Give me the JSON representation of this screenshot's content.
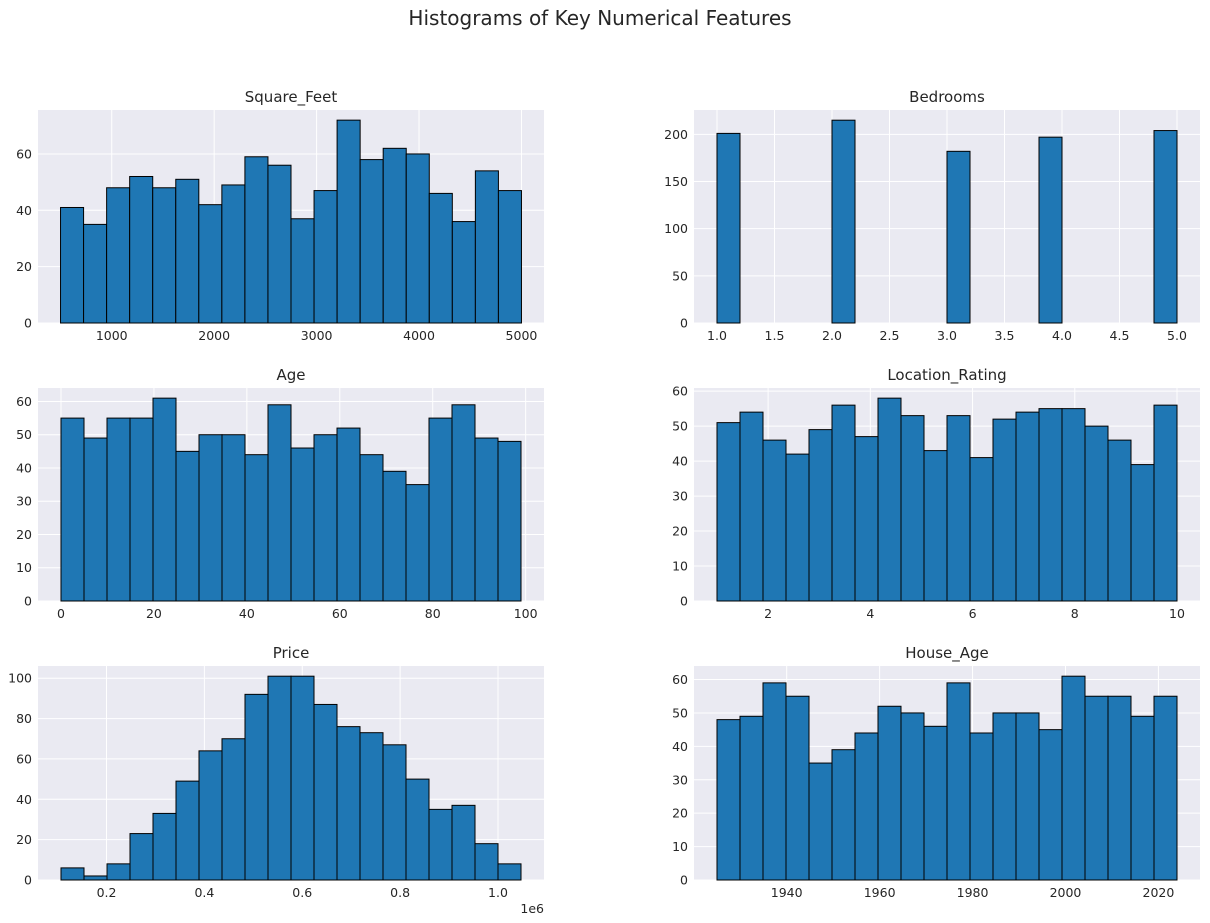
{
  "figure": {
    "title": "Histograms of Key Numerical Features",
    "background": "#ffffff",
    "axes_background": "#eaeaf2",
    "bar_color": "#1f77b4",
    "edge_color": "#000000",
    "grid_color": "#ffffff"
  },
  "chart_data": [
    {
      "type": "bar",
      "title": "Square_Feet",
      "xlabel": "",
      "ylabel": "",
      "bin_range": [
        500,
        5000
      ],
      "bin_count": 20,
      "values": [
        41,
        35,
        48,
        52,
        48,
        51,
        42,
        49,
        59,
        56,
        37,
        47,
        72,
        58,
        62,
        60,
        46,
        36,
        54,
        47
      ],
      "xlim": [
        280,
        5220
      ],
      "ylim": [
        0,
        75.6
      ],
      "xticks": [
        1000,
        2000,
        3000,
        4000,
        5000
      ],
      "xtick_labels": [
        "1000",
        "2000",
        "3000",
        "4000",
        "5000"
      ],
      "yticks": [
        0,
        20,
        40,
        60
      ],
      "ytick_labels": [
        "0",
        "20",
        "40",
        "60"
      ],
      "grid": true
    },
    {
      "type": "bar",
      "title": "Bedrooms",
      "xlabel": "",
      "ylabel": "",
      "bin_range": [
        1,
        5
      ],
      "bin_count": 20,
      "values": [
        201,
        0,
        0,
        0,
        0,
        215,
        0,
        0,
        0,
        0,
        182,
        0,
        0,
        0,
        197,
        0,
        0,
        0,
        0,
        204
      ],
      "xlim": [
        0.8,
        5.2
      ],
      "ylim": [
        0,
        225.8
      ],
      "xticks": [
        1.0,
        1.5,
        2.0,
        2.5,
        3.0,
        3.5,
        4.0,
        4.5,
        5.0
      ],
      "xtick_labels": [
        "1.0",
        "1.5",
        "2.0",
        "2.5",
        "3.0",
        "3.5",
        "4.0",
        "4.5",
        "5.0"
      ],
      "yticks": [
        0,
        50,
        100,
        150,
        200
      ],
      "ytick_labels": [
        "0",
        "50",
        "100",
        "150",
        "200"
      ],
      "grid": true
    },
    {
      "type": "bar",
      "title": "Age",
      "xlabel": "",
      "ylabel": "",
      "bin_range": [
        0,
        99
      ],
      "bin_count": 20,
      "values": [
        55,
        49,
        55,
        55,
        61,
        45,
        50,
        50,
        44,
        59,
        46,
        50,
        52,
        44,
        39,
        35,
        55,
        59,
        49,
        48
      ],
      "xlim": [
        -4.95,
        103.95
      ],
      "ylim": [
        0,
        64.05
      ],
      "xticks": [
        0,
        20,
        40,
        60,
        80,
        100
      ],
      "xtick_labels": [
        "0",
        "20",
        "40",
        "60",
        "80",
        "100"
      ],
      "yticks": [
        0,
        10,
        20,
        30,
        40,
        50,
        60
      ],
      "ytick_labels": [
        "0",
        "10",
        "20",
        "30",
        "40",
        "50",
        "60"
      ],
      "grid": true
    },
    {
      "type": "bar",
      "title": "Location_Rating",
      "xlabel": "",
      "ylabel": "",
      "bin_range": [
        1,
        10
      ],
      "bin_count": 20,
      "values": [
        51,
        54,
        46,
        42,
        49,
        56,
        47,
        58,
        53,
        43,
        53,
        41,
        52,
        54,
        55,
        55,
        50,
        46,
        39,
        56
      ],
      "xlim": [
        0.55,
        10.45
      ],
      "ylim": [
        0,
        60.9
      ],
      "xticks": [
        2,
        4,
        6,
        8,
        10
      ],
      "xtick_labels": [
        "2",
        "4",
        "6",
        "8",
        "10"
      ],
      "yticks": [
        0,
        10,
        20,
        30,
        40,
        50,
        60
      ],
      "ytick_labels": [
        "0",
        "10",
        "20",
        "30",
        "40",
        "50",
        "60"
      ],
      "grid": true
    },
    {
      "type": "bar",
      "title": "Price",
      "xlabel": "",
      "ylabel": "",
      "bin_range": [
        0.107,
        1.047
      ],
      "bin_count": 20,
      "values": [
        6,
        2,
        8,
        23,
        33,
        49,
        64,
        70,
        92,
        101,
        101,
        87,
        76,
        73,
        67,
        50,
        35,
        37,
        18,
        8
      ],
      "xlim": [
        0.06,
        1.094
      ],
      "ylim": [
        0,
        106.05
      ],
      "xticks": [
        0.2,
        0.4,
        0.6,
        0.8,
        1.0
      ],
      "xtick_labels": [
        "0.2",
        "0.4",
        "0.6",
        "0.8",
        "1.0"
      ],
      "yticks": [
        0,
        20,
        40,
        60,
        80,
        100
      ],
      "ytick_labels": [
        "0",
        "20",
        "40",
        "60",
        "80",
        "100"
      ],
      "axis_offset_label": "1e6",
      "grid": true
    },
    {
      "type": "bar",
      "title": "House_Age",
      "xlabel": "",
      "ylabel": "",
      "bin_range": [
        1925,
        2024
      ],
      "bin_count": 20,
      "values": [
        48,
        49,
        59,
        55,
        35,
        39,
        44,
        52,
        50,
        46,
        59,
        44,
        50,
        50,
        45,
        61,
        55,
        55,
        49,
        55
      ],
      "xlim": [
        1920.05,
        2028.95
      ],
      "ylim": [
        0,
        64.05
      ],
      "xticks": [
        1940,
        1960,
        1980,
        2000,
        2020
      ],
      "xtick_labels": [
        "1940",
        "1960",
        "1980",
        "2000",
        "2020"
      ],
      "yticks": [
        0,
        10,
        20,
        30,
        40,
        50,
        60
      ],
      "ytick_labels": [
        "0",
        "10",
        "20",
        "30",
        "40",
        "50",
        "60"
      ],
      "grid": true
    }
  ]
}
